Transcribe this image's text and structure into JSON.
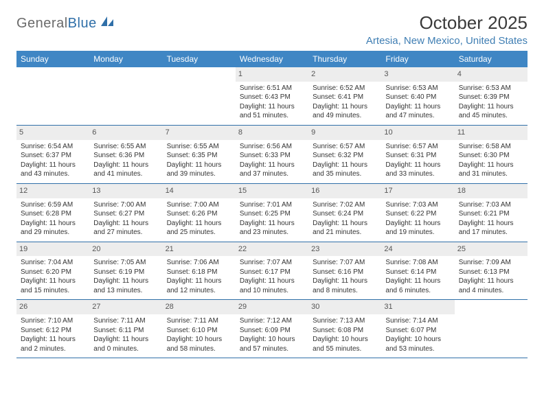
{
  "logo": {
    "general": "General",
    "blue": "Blue"
  },
  "title": "October 2025",
  "location": "Artesia, New Mexico, United States",
  "colors": {
    "header_bg": "#3f86c4",
    "header_text": "#ffffff",
    "accent": "#2f6fa8",
    "daynum_bg": "#ededed",
    "body_text": "#333333",
    "location_text": "#3f7eb3"
  },
  "weekdays": [
    "Sunday",
    "Monday",
    "Tuesday",
    "Wednesday",
    "Thursday",
    "Friday",
    "Saturday"
  ],
  "weeks": [
    [
      null,
      null,
      null,
      {
        "n": "1",
        "sr": "Sunrise: 6:51 AM",
        "ss": "Sunset: 6:43 PM",
        "dl": "Daylight: 11 hours and 51 minutes."
      },
      {
        "n": "2",
        "sr": "Sunrise: 6:52 AM",
        "ss": "Sunset: 6:41 PM",
        "dl": "Daylight: 11 hours and 49 minutes."
      },
      {
        "n": "3",
        "sr": "Sunrise: 6:53 AM",
        "ss": "Sunset: 6:40 PM",
        "dl": "Daylight: 11 hours and 47 minutes."
      },
      {
        "n": "4",
        "sr": "Sunrise: 6:53 AM",
        "ss": "Sunset: 6:39 PM",
        "dl": "Daylight: 11 hours and 45 minutes."
      }
    ],
    [
      {
        "n": "5",
        "sr": "Sunrise: 6:54 AM",
        "ss": "Sunset: 6:37 PM",
        "dl": "Daylight: 11 hours and 43 minutes."
      },
      {
        "n": "6",
        "sr": "Sunrise: 6:55 AM",
        "ss": "Sunset: 6:36 PM",
        "dl": "Daylight: 11 hours and 41 minutes."
      },
      {
        "n": "7",
        "sr": "Sunrise: 6:55 AM",
        "ss": "Sunset: 6:35 PM",
        "dl": "Daylight: 11 hours and 39 minutes."
      },
      {
        "n": "8",
        "sr": "Sunrise: 6:56 AM",
        "ss": "Sunset: 6:33 PM",
        "dl": "Daylight: 11 hours and 37 minutes."
      },
      {
        "n": "9",
        "sr": "Sunrise: 6:57 AM",
        "ss": "Sunset: 6:32 PM",
        "dl": "Daylight: 11 hours and 35 minutes."
      },
      {
        "n": "10",
        "sr": "Sunrise: 6:57 AM",
        "ss": "Sunset: 6:31 PM",
        "dl": "Daylight: 11 hours and 33 minutes."
      },
      {
        "n": "11",
        "sr": "Sunrise: 6:58 AM",
        "ss": "Sunset: 6:30 PM",
        "dl": "Daylight: 11 hours and 31 minutes."
      }
    ],
    [
      {
        "n": "12",
        "sr": "Sunrise: 6:59 AM",
        "ss": "Sunset: 6:28 PM",
        "dl": "Daylight: 11 hours and 29 minutes."
      },
      {
        "n": "13",
        "sr": "Sunrise: 7:00 AM",
        "ss": "Sunset: 6:27 PM",
        "dl": "Daylight: 11 hours and 27 minutes."
      },
      {
        "n": "14",
        "sr": "Sunrise: 7:00 AM",
        "ss": "Sunset: 6:26 PM",
        "dl": "Daylight: 11 hours and 25 minutes."
      },
      {
        "n": "15",
        "sr": "Sunrise: 7:01 AM",
        "ss": "Sunset: 6:25 PM",
        "dl": "Daylight: 11 hours and 23 minutes."
      },
      {
        "n": "16",
        "sr": "Sunrise: 7:02 AM",
        "ss": "Sunset: 6:24 PM",
        "dl": "Daylight: 11 hours and 21 minutes."
      },
      {
        "n": "17",
        "sr": "Sunrise: 7:03 AM",
        "ss": "Sunset: 6:22 PM",
        "dl": "Daylight: 11 hours and 19 minutes."
      },
      {
        "n": "18",
        "sr": "Sunrise: 7:03 AM",
        "ss": "Sunset: 6:21 PM",
        "dl": "Daylight: 11 hours and 17 minutes."
      }
    ],
    [
      {
        "n": "19",
        "sr": "Sunrise: 7:04 AM",
        "ss": "Sunset: 6:20 PM",
        "dl": "Daylight: 11 hours and 15 minutes."
      },
      {
        "n": "20",
        "sr": "Sunrise: 7:05 AM",
        "ss": "Sunset: 6:19 PM",
        "dl": "Daylight: 11 hours and 13 minutes."
      },
      {
        "n": "21",
        "sr": "Sunrise: 7:06 AM",
        "ss": "Sunset: 6:18 PM",
        "dl": "Daylight: 11 hours and 12 minutes."
      },
      {
        "n": "22",
        "sr": "Sunrise: 7:07 AM",
        "ss": "Sunset: 6:17 PM",
        "dl": "Daylight: 11 hours and 10 minutes."
      },
      {
        "n": "23",
        "sr": "Sunrise: 7:07 AM",
        "ss": "Sunset: 6:16 PM",
        "dl": "Daylight: 11 hours and 8 minutes."
      },
      {
        "n": "24",
        "sr": "Sunrise: 7:08 AM",
        "ss": "Sunset: 6:14 PM",
        "dl": "Daylight: 11 hours and 6 minutes."
      },
      {
        "n": "25",
        "sr": "Sunrise: 7:09 AM",
        "ss": "Sunset: 6:13 PM",
        "dl": "Daylight: 11 hours and 4 minutes."
      }
    ],
    [
      {
        "n": "26",
        "sr": "Sunrise: 7:10 AM",
        "ss": "Sunset: 6:12 PM",
        "dl": "Daylight: 11 hours and 2 minutes."
      },
      {
        "n": "27",
        "sr": "Sunrise: 7:11 AM",
        "ss": "Sunset: 6:11 PM",
        "dl": "Daylight: 11 hours and 0 minutes."
      },
      {
        "n": "28",
        "sr": "Sunrise: 7:11 AM",
        "ss": "Sunset: 6:10 PM",
        "dl": "Daylight: 10 hours and 58 minutes."
      },
      {
        "n": "29",
        "sr": "Sunrise: 7:12 AM",
        "ss": "Sunset: 6:09 PM",
        "dl": "Daylight: 10 hours and 57 minutes."
      },
      {
        "n": "30",
        "sr": "Sunrise: 7:13 AM",
        "ss": "Sunset: 6:08 PM",
        "dl": "Daylight: 10 hours and 55 minutes."
      },
      {
        "n": "31",
        "sr": "Sunrise: 7:14 AM",
        "ss": "Sunset: 6:07 PM",
        "dl": "Daylight: 10 hours and 53 minutes."
      },
      null
    ]
  ]
}
